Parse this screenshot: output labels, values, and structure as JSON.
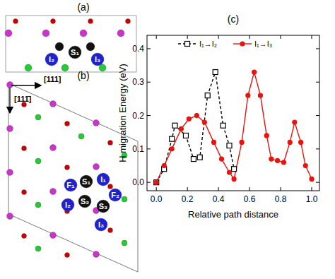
{
  "diagram_a": {
    "label": "(a)",
    "atom_labels": [
      "S₁",
      "I₂",
      "I₃"
    ]
  },
  "diagram_b": {
    "label": "(b)",
    "atom_labels": [
      "F₁",
      "S₁",
      "I₁",
      "F₂",
      "I₂",
      "S₂",
      "S₃",
      "I₃"
    ],
    "directions": [
      "[111]",
      "[111̄]"
    ]
  },
  "chart_data": {
    "type": "line",
    "title": "(c)",
    "x_label": "Relative path distance",
    "y_label": "H migration Energy (eV)",
    "xlim": [
      -0.06,
      1.05
    ],
    "xticks": [
      {
        "value": 0,
        "label": "0.0"
      },
      {
        "value": 0.2,
        "label": "0.2"
      },
      {
        "value": 0.4,
        "label": "0.4"
      },
      {
        "value": 0.6,
        "label": "0.6"
      },
      {
        "value": 0.8,
        "label": "0.8"
      },
      {
        "value": 1,
        "label": "1.0"
      }
    ],
    "ylim": [
      -0.025,
      0.44
    ],
    "yticks": [
      {
        "value": 0,
        "label": "0.0"
      },
      0.1,
      0.2,
      0.3,
      0.4
    ],
    "legend": "top",
    "series": [
      {
        "name": "I₁→I₂",
        "color": "#000000",
        "line_style": "dashed",
        "marker": "square",
        "x": [
          0,
          0.05,
          0.1,
          0.12,
          0.19,
          0.24,
          0.28,
          0.33,
          0.38,
          0.43,
          0.47,
          0.5
        ],
        "values": [
          0,
          0.04,
          0.13,
          0.17,
          0.14,
          0.07,
          0.075,
          0.26,
          0.33,
          0.17,
          0.11,
          0.04
        ]
      },
      {
        "name": "I₁→I₃",
        "color": "#e8140f",
        "line_style": "solid",
        "marker": "circle",
        "x": [
          0,
          0.05,
          0.1,
          0.16,
          0.21,
          0.26,
          0.31,
          0.37,
          0.42,
          0.47,
          0.5,
          0.55,
          0.59,
          0.63,
          0.67,
          0.71,
          0.74,
          0.78,
          0.82,
          0.86,
          0.89,
          0.93,
          0.96,
          1.0
        ],
        "values": [
          0,
          0.05,
          0.1,
          0.16,
          0.19,
          0.2,
          0.18,
          0.12,
          0.07,
          0.03,
          0.01,
          0.12,
          0.26,
          0.33,
          0.26,
          0.14,
          0.07,
          0.065,
          0.06,
          0.12,
          0.18,
          0.12,
          0.05,
          0.01
        ]
      }
    ]
  }
}
